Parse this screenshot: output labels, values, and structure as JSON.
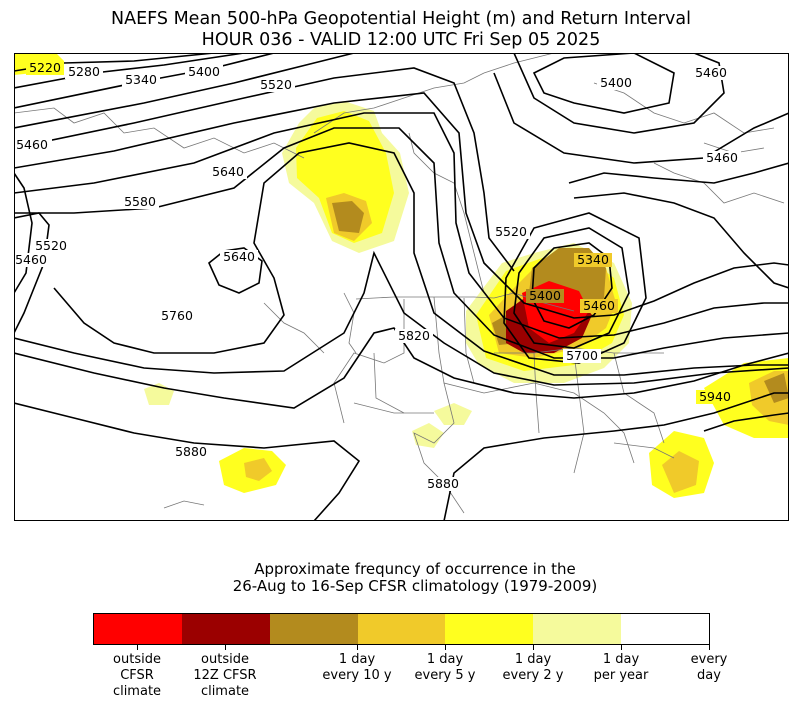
{
  "title": {
    "line1": "NAEFS Mean 500-hPa Geopotential Height (m) and Return Interval",
    "line2": "HOUR 036 - VALID 12:00 UTC Fri Sep 05 2025"
  },
  "colors": {
    "outside_cfsr": "#ff0000",
    "outside_12z": "#9b0000",
    "every_10y": "#b38b1e",
    "every_5y": "#f0ca2a",
    "every_2y": "#ffff1f",
    "per_year": "#f5fa9c",
    "every_day": "#ffffff",
    "contour": "#000000",
    "borders": "#777777"
  },
  "contour_labels": [
    "5220",
    "5280",
    "5340",
    "5400",
    "5520",
    "5460",
    "5460",
    "5400",
    "5460",
    "5580",
    "5640",
    "5640",
    "5460",
    "5520",
    "5760",
    "5820",
    "5520",
    "5340",
    "5400",
    "5460",
    "5700",
    "5880",
    "5940",
    "5880"
  ],
  "caption": {
    "line1": "Approximate frequncy of occurrence in the",
    "line2": "26-Aug to 16-Sep CFSR climatology (1979-2009)"
  },
  "colorbar": {
    "labels": [
      {
        "text": "outside\nCFSR\nclimate"
      },
      {
        "text": "outside\n12Z CFSR\nclimate"
      },
      {
        "text": "1 day\nevery 10 y"
      },
      {
        "text": "1 day\nevery 5 y"
      },
      {
        "text": "1 day\nevery 2 y"
      },
      {
        "text": "1 day\nper year"
      },
      {
        "text": "every\nday"
      }
    ]
  }
}
